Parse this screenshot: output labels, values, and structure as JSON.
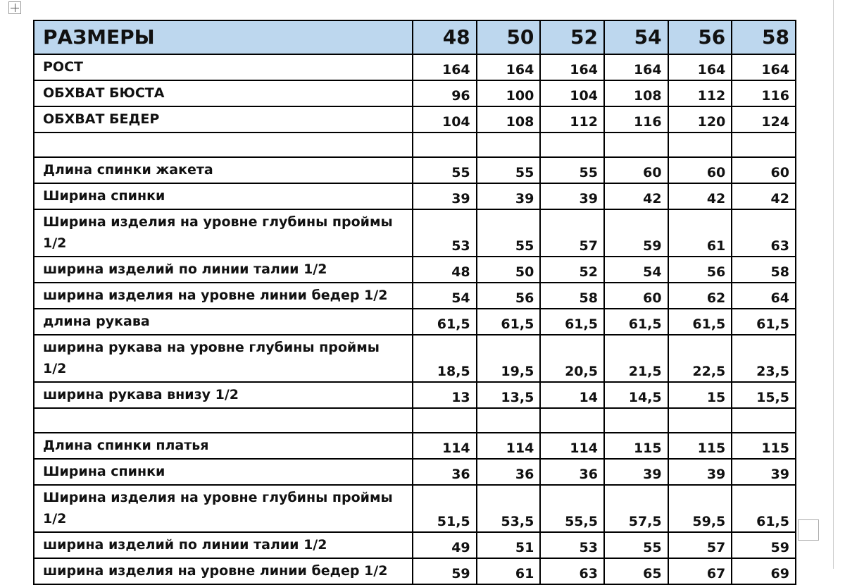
{
  "table": {
    "header": [
      "РАЗМЕРЫ",
      "48",
      "50",
      "52",
      "54",
      "56",
      "58"
    ],
    "sections": [
      {
        "rows": [
          [
            "РОСТ",
            "164",
            "164",
            "164",
            "164",
            "164",
            "164"
          ],
          [
            "ОБХВАТ БЮСТА",
            "96",
            "100",
            "104",
            "108",
            "112",
            "116"
          ],
          [
            "ОБХВАТ БЕДЕР",
            "104",
            "108",
            "112",
            "116",
            "120",
            "124"
          ]
        ]
      },
      {
        "rows": [
          [
            "Длина спинки жакета",
            "55",
            "55",
            "55",
            "60",
            "60",
            "60"
          ],
          [
            "Ширина спинки",
            "39",
            "39",
            "39",
            "42",
            "42",
            "42"
          ],
          [
            "Ширина изделия на уровне глубины проймы 1/2",
            "53",
            "55",
            "57",
            "59",
            "61",
            "63"
          ],
          [
            "ширина изделий по линии талии 1/2",
            "48",
            "50",
            "52",
            "54",
            "56",
            "58"
          ],
          [
            "ширина изделия на уровне линии бедер 1/2",
            "54",
            "56",
            "58",
            "60",
            "62",
            "64"
          ],
          [
            "длина рукава",
            "61,5",
            "61,5",
            "61,5",
            "61,5",
            "61,5",
            "61,5"
          ],
          [
            "ширина рукава на уровне глубины проймы 1/2",
            "18,5",
            "19,5",
            "20,5",
            "21,5",
            "22,5",
            "23,5"
          ],
          [
            "ширина рукава внизу 1/2",
            "13",
            "13,5",
            "14",
            "14,5",
            "15",
            "15,5"
          ]
        ]
      },
      {
        "rows": [
          [
            "Длина спинки платья",
            "114",
            "114",
            "114",
            "115",
            "115",
            "115"
          ],
          [
            "Ширина спинки",
            "36",
            "36",
            "36",
            "39",
            "39",
            "39"
          ],
          [
            "Ширина изделия на уровне глубины проймы 1/2",
            "51,5",
            "53,5",
            "55,5",
            "57,5",
            "59,5",
            "61,5"
          ],
          [
            "ширина изделий по линии талии 1/2",
            "49",
            "51",
            "53",
            "55",
            "57",
            "59"
          ],
          [
            "ширина изделия на уровне линии бедер 1/2",
            "59",
            "61",
            "63",
            "65",
            "67",
            "69"
          ]
        ]
      }
    ]
  }
}
